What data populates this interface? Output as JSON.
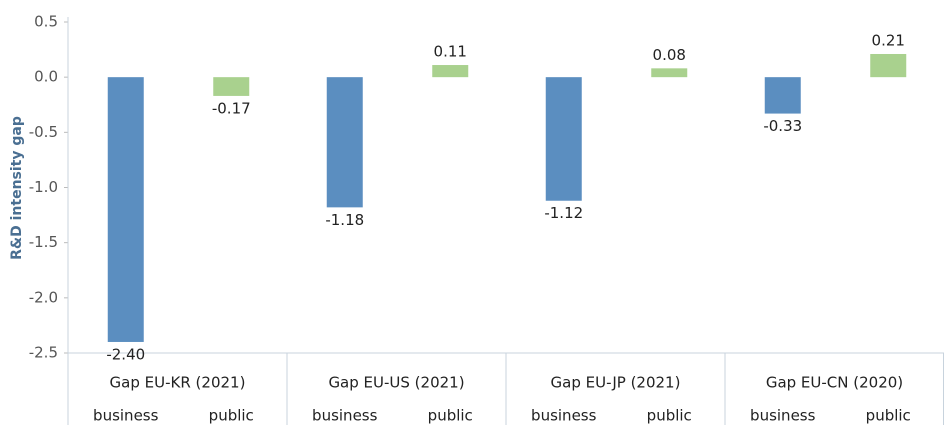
{
  "chart_data": {
    "type": "bar",
    "y_axis_label": "R&D intensity gap",
    "categories": [
      "Gap EU-KR (2021)",
      "Gap EU-US (2021)",
      "Gap EU-JP (2021)",
      "Gap EU-CN (2020)"
    ],
    "series": [
      {
        "name": "business",
        "color": "#5b8ec0",
        "values": [
          -2.4,
          -1.18,
          -1.12,
          -0.33
        ],
        "value_labels": [
          "-2.40",
          "-1.18",
          "-1.12",
          "-0.33"
        ]
      },
      {
        "name": "public",
        "color": "#a9d18e",
        "values": [
          -0.17,
          0.11,
          0.08,
          0.21
        ],
        "value_labels": [
          "-0.17",
          "0.11",
          "0.08",
          "0.21"
        ]
      }
    ],
    "ylim": [
      -2.5,
      0.5
    ],
    "yticks": [
      0.5,
      {
        "value": 0,
        "label": "0.0"
      },
      -0.5,
      {
        "value": -1,
        "label": "-1.0"
      },
      -1.5,
      {
        "value": -2,
        "label": "-2.0"
      },
      -2.5
    ],
    "grid": false
  }
}
